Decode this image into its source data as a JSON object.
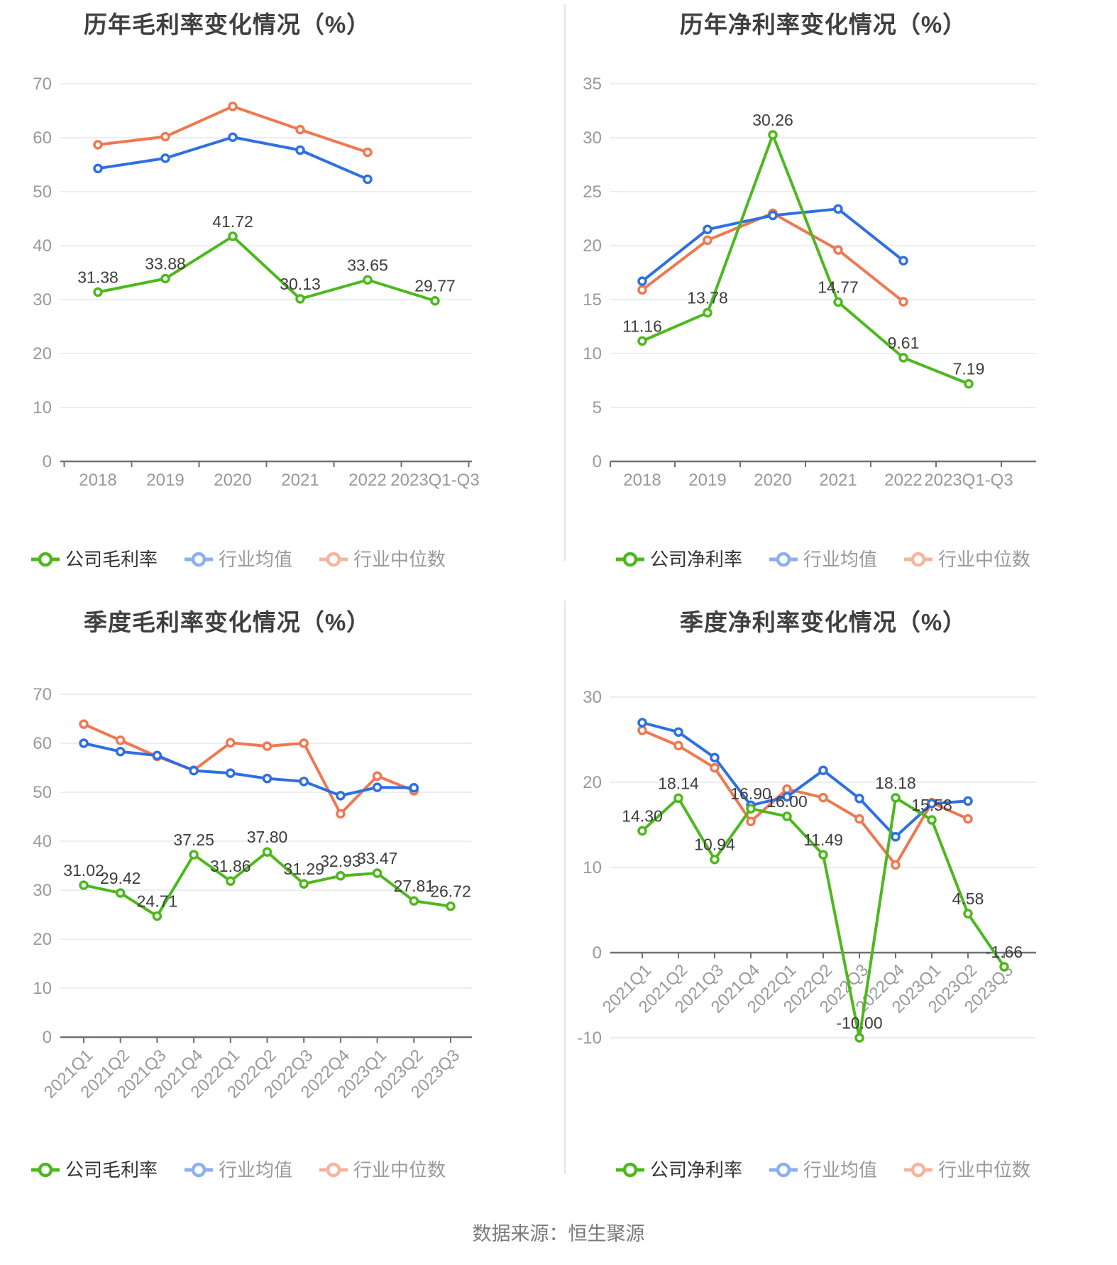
{
  "source_note": "数据来源：恒生聚源",
  "palette": {
    "company_green": "#4db81e",
    "industry_avg_blue": "#2e6fe2",
    "industry_median_orange": "#ef7850",
    "grid_line": "#e4e7ef",
    "axis_line": "#6e7079",
    "axis_label": "#999999",
    "data_label": "#3d3d3d",
    "legend_text_active": "#333333",
    "legend_text_muted": "#999999"
  },
  "chart_data": [
    {
      "type": "line",
      "title": "历年毛利率变化情况（%）",
      "categories": [
        "2018",
        "2019",
        "2020",
        "2021",
        "2022",
        "2023Q1-Q3"
      ],
      "ylim": [
        0,
        70
      ],
      "ystep": 10,
      "grid": true,
      "legend_position": "bottom",
      "series": [
        {
          "name": "公司毛利率",
          "values": [
            31.38,
            33.88,
            41.72,
            30.13,
            33.65,
            29.77
          ],
          "labeled": true
        },
        {
          "name": "行业均值",
          "values": [
            54.3,
            56.2,
            60.1,
            57.7,
            52.3
          ],
          "labeled": false
        },
        {
          "name": "行业中位数",
          "values": [
            58.7,
            60.2,
            65.8,
            61.5,
            57.3
          ],
          "labeled": false
        }
      ]
    },
    {
      "type": "line",
      "title": "历年净利率变化情况（%）",
      "categories": [
        "2018",
        "2019",
        "2020",
        "2021",
        "2022",
        "2023Q1-Q3"
      ],
      "ylim": [
        0,
        35
      ],
      "ystep": 5,
      "grid": true,
      "legend_position": "bottom",
      "series": [
        {
          "name": "公司净利率",
          "values": [
            11.16,
            13.78,
            30.26,
            14.77,
            9.61,
            7.19
          ],
          "labeled": true
        },
        {
          "name": "行业均值",
          "values": [
            16.7,
            21.5,
            22.8,
            23.4,
            18.6
          ],
          "labeled": false
        },
        {
          "name": "行业中位数",
          "values": [
            15.9,
            20.5,
            23.0,
            19.6,
            14.8
          ],
          "labeled": false
        }
      ]
    },
    {
      "type": "line",
      "title": "季度毛利率变化情况（%）",
      "categories": [
        "2021Q1",
        "2021Q2",
        "2021Q3",
        "2021Q4",
        "2022Q1",
        "2022Q2",
        "2022Q3",
        "2022Q4",
        "2023Q1",
        "2023Q2",
        "2023Q3"
      ],
      "ylim": [
        0,
        70
      ],
      "ystep": 10,
      "grid": true,
      "legend_position": "bottom",
      "series": [
        {
          "name": "公司毛利率",
          "values": [
            31.02,
            29.42,
            24.71,
            37.25,
            31.86,
            37.8,
            31.29,
            32.93,
            33.47,
            27.81,
            26.72
          ],
          "labeled": true
        },
        {
          "name": "行业均值",
          "values": [
            60.0,
            58.3,
            57.5,
            54.4,
            53.9,
            52.8,
            52.2,
            49.3,
            51.0,
            50.9
          ],
          "labeled": false
        },
        {
          "name": "行业中位数",
          "values": [
            63.9,
            60.6,
            57.3,
            54.5,
            60.1,
            59.4,
            60.0,
            45.6,
            53.3,
            50.3
          ],
          "labeled": false
        }
      ]
    },
    {
      "type": "line",
      "title": "季度净利率变化情况（%）",
      "categories": [
        "2021Q1",
        "2021Q2",
        "2021Q3",
        "2021Q4",
        "2022Q1",
        "2022Q2",
        "2022Q3",
        "2022Q4",
        "2023Q1",
        "2023Q2",
        "2023Q3"
      ],
      "ylim": [
        -10,
        30
      ],
      "ystep": 10,
      "grid": true,
      "legend_position": "bottom",
      "series": [
        {
          "name": "公司净利率",
          "values": [
            14.3,
            18.14,
            10.94,
            16.9,
            16.0,
            11.49,
            -10.0,
            18.18,
            15.58,
            4.58,
            -1.66
          ],
          "labeled": true
        },
        {
          "name": "行业均值",
          "values": [
            27.0,
            25.9,
            22.9,
            17.3,
            18.3,
            21.4,
            18.1,
            13.6,
            17.5,
            17.8
          ],
          "labeled": false
        },
        {
          "name": "行业中位数",
          "values": [
            26.1,
            24.3,
            21.7,
            15.4,
            19.2,
            18.2,
            15.7,
            10.3,
            17.6,
            15.7
          ],
          "labeled": false
        }
      ]
    }
  ]
}
